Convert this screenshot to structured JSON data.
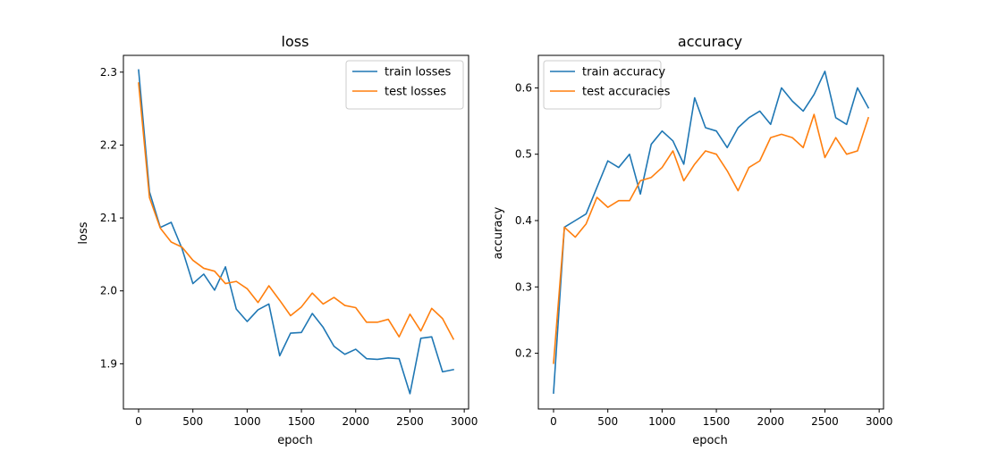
{
  "chart_data": [
    {
      "type": "line",
      "title": "loss",
      "xlabel": "epoch",
      "ylabel": "loss",
      "xlim": [
        -140,
        3040
      ],
      "ylim": [
        1.838,
        2.323
      ],
      "xticks": [
        0,
        500,
        1000,
        1500,
        2000,
        2500,
        3000
      ],
      "yticks": [
        1.9,
        2.0,
        2.1,
        2.2,
        2.3
      ],
      "tick_decimals": 1,
      "legend_position": "upper right",
      "grid": false,
      "x": [
        0,
        100,
        200,
        300,
        400,
        500,
        600,
        700,
        800,
        900,
        1000,
        1100,
        1200,
        1300,
        1400,
        1500,
        1600,
        1700,
        1800,
        1900,
        2000,
        2100,
        2200,
        2300,
        2400,
        2500,
        2600,
        2700,
        2800,
        2900
      ],
      "series": [
        {
          "name": "train losses",
          "color": "#1f77b4",
          "values": [
            2.303,
            2.136,
            2.087,
            2.094,
            2.058,
            2.01,
            2.023,
            2.001,
            2.033,
            1.975,
            1.958,
            1.974,
            1.982,
            1.911,
            1.942,
            1.943,
            1.969,
            1.95,
            1.924,
            1.913,
            1.92,
            1.907,
            1.906,
            1.908,
            1.907,
            1.859,
            1.935,
            1.937,
            1.889,
            1.892
          ]
        },
        {
          "name": "test losses",
          "color": "#ff7f0e",
          "values": [
            2.285,
            2.128,
            2.086,
            2.067,
            2.06,
            2.042,
            2.031,
            2.027,
            2.01,
            2.013,
            2.003,
            1.984,
            2.007,
            1.987,
            1.966,
            1.978,
            1.997,
            1.982,
            1.991,
            1.98,
            1.977,
            1.957,
            1.957,
            1.961,
            1.937,
            1.968,
            1.945,
            1.976,
            1.962,
            1.934
          ]
        }
      ]
    },
    {
      "type": "line",
      "title": "accuracy",
      "xlabel": "epoch",
      "ylabel": "accuracy",
      "xlim": [
        -140,
        3040
      ],
      "ylim": [
        0.116,
        0.649
      ],
      "xticks": [
        0,
        500,
        1000,
        1500,
        2000,
        2500,
        3000
      ],
      "yticks": [
        0.2,
        0.3,
        0.4,
        0.5,
        0.6
      ],
      "tick_decimals": 1,
      "legend_position": "upper left",
      "grid": false,
      "x": [
        0,
        100,
        200,
        300,
        400,
        500,
        600,
        700,
        800,
        900,
        1000,
        1100,
        1200,
        1300,
        1400,
        1500,
        1600,
        1700,
        1800,
        1900,
        2000,
        2100,
        2200,
        2300,
        2400,
        2500,
        2600,
        2700,
        2800,
        2900
      ],
      "series": [
        {
          "name": "train accuracy",
          "color": "#1f77b4",
          "values": [
            0.14,
            0.39,
            0.4,
            0.41,
            0.45,
            0.49,
            0.48,
            0.5,
            0.44,
            0.515,
            0.535,
            0.52,
            0.485,
            0.585,
            0.54,
            0.535,
            0.51,
            0.54,
            0.555,
            0.565,
            0.545,
            0.6,
            0.58,
            0.565,
            0.59,
            0.625,
            0.555,
            0.545,
            0.6,
            0.57
          ]
        },
        {
          "name": "test accuracies",
          "color": "#ff7f0e",
          "values": [
            0.185,
            0.39,
            0.375,
            0.395,
            0.435,
            0.42,
            0.43,
            0.43,
            0.46,
            0.465,
            0.48,
            0.505,
            0.46,
            0.485,
            0.505,
            0.5,
            0.475,
            0.445,
            0.48,
            0.49,
            0.525,
            0.53,
            0.525,
            0.51,
            0.56,
            0.495,
            0.525,
            0.5,
            0.505,
            0.555
          ]
        }
      ]
    }
  ]
}
